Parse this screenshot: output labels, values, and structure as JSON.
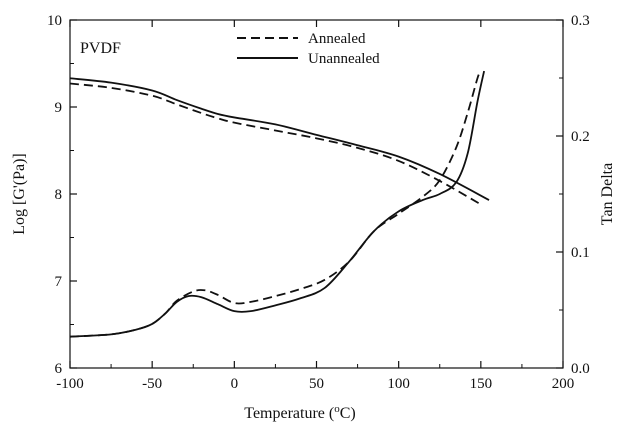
{
  "chart_data": {
    "type": "line",
    "annotation": "PVDF",
    "xlabel": "Temperature (",
    "xlabel_sup": "o",
    "xlabel_suffix": "C)",
    "ylabel": "Log [G'(Pa)]",
    "y2label": "Tan Delta",
    "xlim": [
      -100,
      200
    ],
    "ylim": [
      6,
      10
    ],
    "y2lim": [
      0.0,
      0.3
    ],
    "x_ticks": [
      "-100",
      "-50",
      "0",
      "50",
      "100",
      "150",
      "200"
    ],
    "y_ticks": [
      "6",
      "7",
      "8",
      "9",
      "10"
    ],
    "y2_ticks": [
      "0.0",
      "0.1",
      "0.2",
      "0.3"
    ],
    "grid": false,
    "legend_position": "top-center",
    "legend": [
      {
        "name": "Annealed",
        "style": "dashed"
      },
      {
        "name": "Unannealed",
        "style": "solid"
      }
    ],
    "series": [
      {
        "name": "Annealed",
        "quantity": "G'",
        "axis": "left",
        "style": "dashed",
        "x": [
          -100,
          -75,
          -50,
          -35,
          -20,
          -10,
          0,
          25,
          50,
          75,
          100,
          125,
          150
        ],
        "y": [
          9.27,
          9.22,
          9.13,
          9.03,
          8.93,
          8.87,
          8.82,
          8.73,
          8.64,
          8.53,
          8.38,
          8.15,
          7.88
        ]
      },
      {
        "name": "Unannealed",
        "quantity": "G'",
        "axis": "left",
        "style": "solid",
        "x": [
          -100,
          -75,
          -50,
          -35,
          -20,
          -10,
          0,
          25,
          50,
          75,
          100,
          125,
          155
        ],
        "y": [
          9.33,
          9.28,
          9.19,
          9.08,
          8.98,
          8.92,
          8.88,
          8.8,
          8.68,
          8.56,
          8.43,
          8.23,
          7.93
        ]
      },
      {
        "name": "Annealed",
        "quantity": "Tan Delta",
        "axis": "right",
        "style": "dashed",
        "x": [
          -100,
          -75,
          -60,
          -50,
          -42,
          -35,
          -25,
          -18,
          -10,
          0,
          10,
          25,
          40,
          55,
          70,
          85,
          100,
          115,
          125,
          135,
          142,
          148,
          150
        ],
        "y": [
          0.027,
          0.029,
          0.033,
          0.038,
          0.047,
          0.058,
          0.066,
          0.067,
          0.063,
          0.056,
          0.057,
          0.062,
          0.068,
          0.076,
          0.092,
          0.118,
          0.133,
          0.148,
          0.162,
          0.19,
          0.22,
          0.25,
          0.256
        ]
      },
      {
        "name": "Unannealed",
        "quantity": "Tan Delta",
        "axis": "right",
        "style": "solid",
        "x": [
          -100,
          -75,
          -60,
          -50,
          -42,
          -35,
          -28,
          -20,
          -10,
          0,
          10,
          25,
          40,
          55,
          70,
          85,
          100,
          115,
          125,
          135,
          142,
          148,
          152
        ],
        "y": [
          0.027,
          0.029,
          0.033,
          0.038,
          0.047,
          0.057,
          0.062,
          0.061,
          0.055,
          0.049,
          0.049,
          0.054,
          0.06,
          0.069,
          0.092,
          0.118,
          0.135,
          0.145,
          0.15,
          0.16,
          0.185,
          0.23,
          0.256
        ]
      }
    ]
  }
}
